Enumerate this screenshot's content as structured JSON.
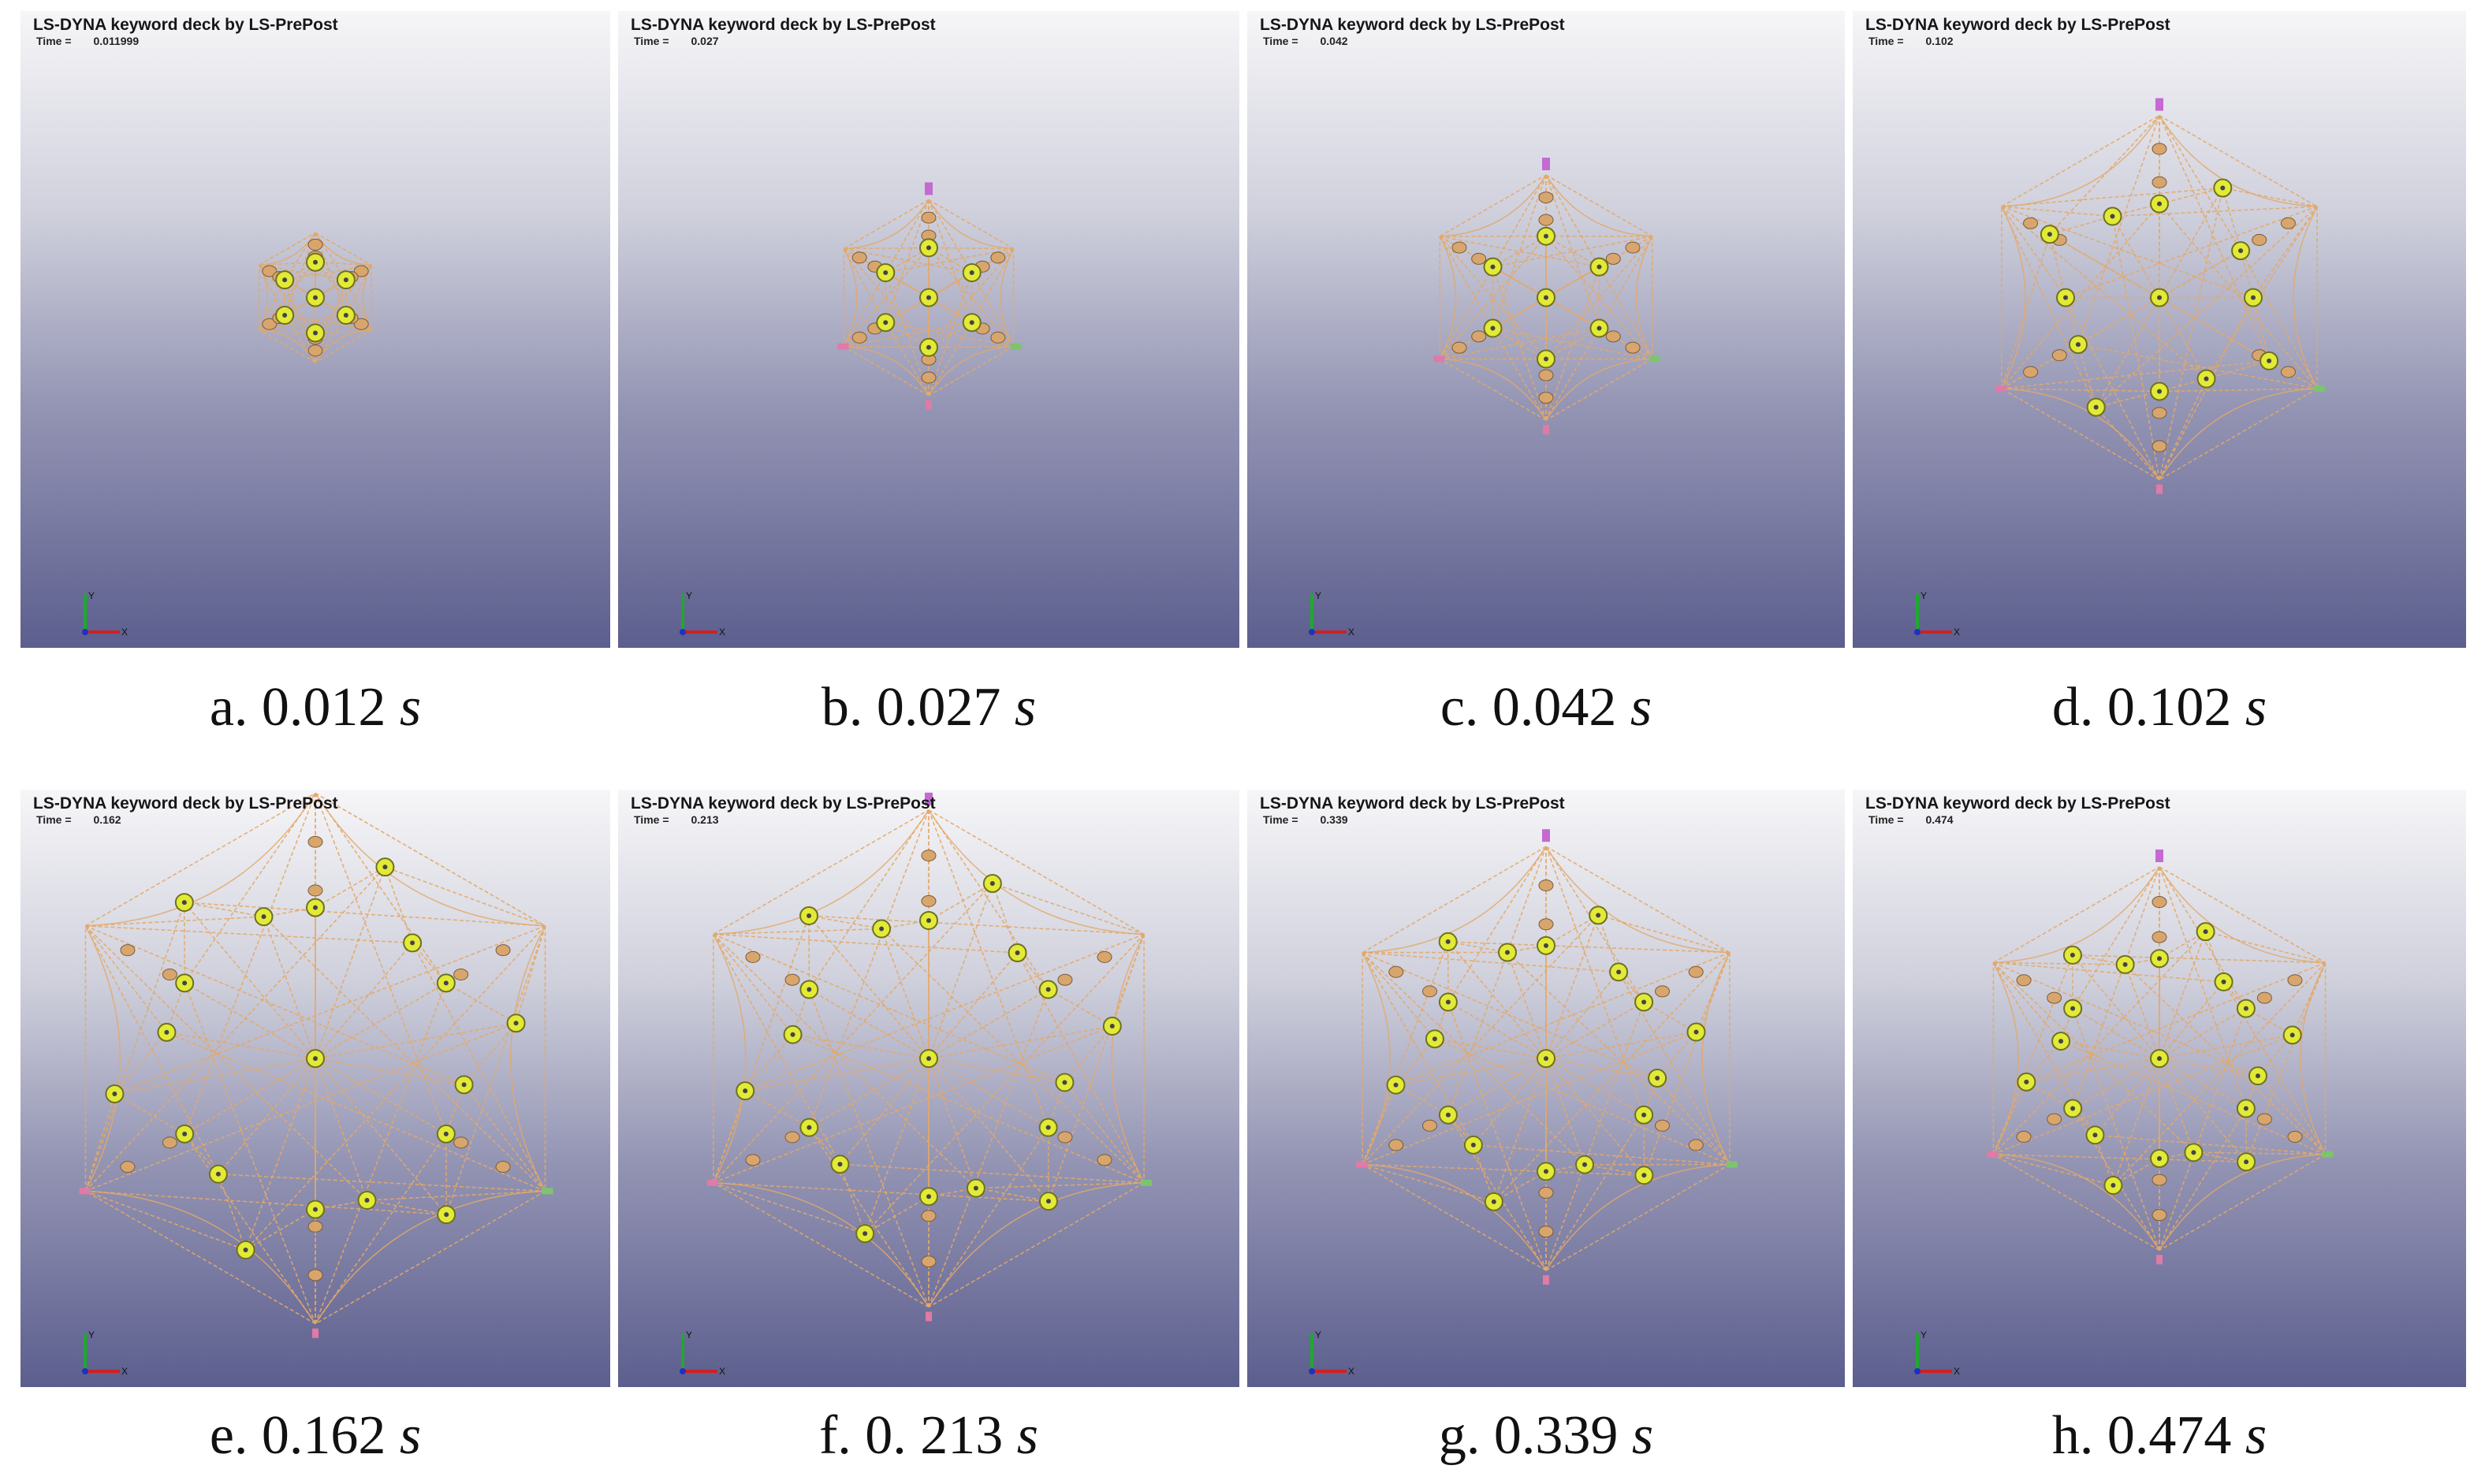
{
  "header_text": "LS-DYNA keyword deck by LS-PrePost",
  "time_label": "Time =",
  "axis_labels": {
    "x": "X",
    "y": "Y"
  },
  "colors": {
    "rope": "#e3a868",
    "node": "#e2ea36",
    "node_ring": "#6e7020",
    "rim": "#d8a66c",
    "tip_pink": "#e07aa6",
    "tip_green": "#7cc46e",
    "tip_purple": "#c46ad2"
  },
  "frames": [
    {
      "id": "a",
      "letter": "a.",
      "value": "0.012",
      "unit": "s",
      "time_value": "0.011999",
      "stage": 0.0
    },
    {
      "id": "b",
      "letter": "b.",
      "value": "0.027",
      "unit": "s",
      "time_value": "0.027",
      "stage": 0.14
    },
    {
      "id": "c",
      "letter": "c.",
      "value": "0.042",
      "unit": "s",
      "time_value": "0.042",
      "stage": 0.28
    },
    {
      "id": "d",
      "letter": "d.",
      "value": "0.102",
      "unit": "s",
      "time_value": "0.102",
      "stage": 0.55
    },
    {
      "id": "e",
      "letter": "e.",
      "value": "0.162",
      "unit": "s",
      "time_value": "0.162",
      "stage": 1.0
    },
    {
      "id": "f",
      "letter": "f.",
      "value": "0. 213",
      "unit": "s",
      "time_value": "0.213",
      "stage": 0.9
    },
    {
      "id": "g",
      "letter": "g.",
      "value": "0.339",
      "unit": "s",
      "time_value": "0.339",
      "stage": 0.72
    },
    {
      "id": "h",
      "letter": "h.",
      "value": "0.474",
      "unit": "s",
      "time_value": "0.474",
      "stage": 0.62
    }
  ]
}
